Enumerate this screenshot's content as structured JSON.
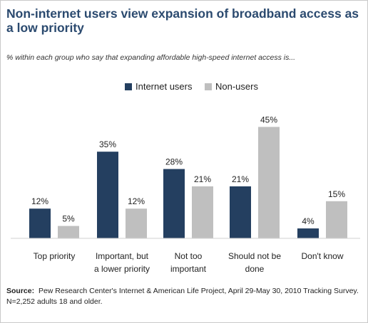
{
  "title": "Non-internet users view expansion of broadband access as a low priority",
  "subtitle": "% within each group who say that expanding affordable high-speed internet access is...",
  "source_label": "Source:",
  "source_text": "Pew Research Center's Internet & American Life Project, April 29-May 30, 2010 Tracking Survey. N=2,252 adults 18 and older.",
  "colors": {
    "internet_users": "#243f60",
    "non_users": "#bfbfbf",
    "title": "#2b4a6f"
  },
  "chart_data": {
    "type": "bar",
    "categories": [
      [
        "Top priority"
      ],
      [
        "Important, but",
        "a lower priority"
      ],
      [
        "Not too",
        "important"
      ],
      [
        "Should not be",
        "done"
      ],
      [
        "Don't know"
      ]
    ],
    "series": [
      {
        "name": "Internet users",
        "values": [
          12,
          35,
          28,
          21,
          4
        ],
        "labels": [
          "12%",
          "35%",
          "28%",
          "21%",
          "4%"
        ]
      },
      {
        "name": "Non-users",
        "values": [
          5,
          12,
          21,
          45,
          15
        ],
        "labels": [
          "5%",
          "12%",
          "21%",
          "45%",
          "15%"
        ]
      }
    ],
    "legend_position": "top-center",
    "grid": false,
    "ylim": [
      0,
      50
    ]
  }
}
